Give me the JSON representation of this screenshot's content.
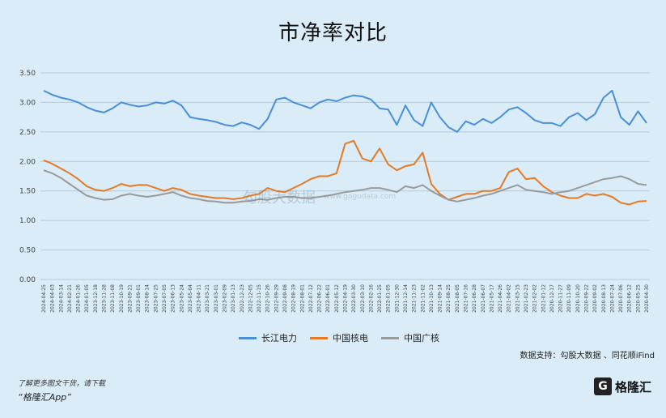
{
  "chart_data": {
    "type": "line",
    "title": "市净率对比",
    "xlabel": "",
    "ylabel": "",
    "ylim": [
      0,
      3.5
    ],
    "yticks": [
      "0.00",
      "0.50",
      "1.00",
      "1.50",
      "2.00",
      "2.50",
      "3.00",
      "3.50"
    ],
    "x": [
      "2024-04-25",
      "2024-04-03",
      "2024-03-14",
      "2024-02-21",
      "2024-01-26",
      "2024-01-05",
      "2023-12-18",
      "2023-11-28",
      "2023-11-08",
      "2023-10-19",
      "2023-09-21",
      "2023-09-01",
      "2023-08-14",
      "2023-07-25",
      "2023-07-05",
      "2023-06-13",
      "2023-05-24",
      "2023-05-04",
      "2023-04-11",
      "2023-03-21",
      "2023-03-01",
      "2023-02-09",
      "2023-01-13",
      "2022-12-23",
      "2022-12-05",
      "2022-11-15",
      "2022-10-26",
      "2022-09-29",
      "2022-09-08",
      "2022-08-19",
      "2022-08-01",
      "2022-07-12",
      "2022-06-22",
      "2022-06-01",
      "2022-05-12",
      "2022-04-19",
      "2022-03-30",
      "2022-03-10",
      "2022-02-16",
      "2022-01-25",
      "2022-01-05",
      "2021-12-30",
      "2021-12-14",
      "2021-11-23",
      "2021-11-02",
      "2021-10-13",
      "2021-09-14",
      "2021-08-25",
      "2021-08-05",
      "2021-07-16",
      "2021-06-28",
      "2021-06-07",
      "2021-05-17",
      "2021-04-26",
      "2021-04-02",
      "2021-03-15",
      "2021-02-23",
      "2021-02-02",
      "2021-01-12",
      "2020-12-17",
      "2020-11-27",
      "2020-11-09",
      "2020-10-20",
      "2020-09-22",
      "2020-09-02",
      "2020-08-13",
      "2020-07-24",
      "2020-07-06",
      "2020-06-12",
      "2020-05-25",
      "2020-04-30"
    ],
    "legend_position": "bottom",
    "grid": true,
    "series": [
      {
        "name": "长江电力",
        "color": "#4a8fd6",
        "values": [
          3.2,
          3.13,
          3.08,
          3.05,
          3.0,
          2.92,
          2.86,
          2.83,
          2.9,
          3.0,
          2.96,
          2.93,
          2.95,
          3.0,
          2.98,
          3.03,
          2.95,
          2.75,
          2.72,
          2.7,
          2.67,
          2.62,
          2.6,
          2.66,
          2.62,
          2.55,
          2.72,
          3.05,
          3.08,
          3.0,
          2.95,
          2.9,
          3.0,
          3.05,
          3.02,
          3.08,
          3.12,
          3.1,
          3.05,
          2.9,
          2.88,
          2.62,
          2.95,
          2.7,
          2.6,
          3.0,
          2.75,
          2.58,
          2.5,
          2.68,
          2.62,
          2.72,
          2.65,
          2.75,
          2.88,
          2.92,
          2.82,
          2.7,
          2.65,
          2.65,
          2.6,
          2.75,
          2.82,
          2.7,
          2.8,
          3.08,
          3.2,
          2.75,
          2.62,
          2.85,
          2.65
        ]
      },
      {
        "name": "中国核电",
        "color": "#e57a25",
        "values": [
          2.02,
          1.96,
          1.88,
          1.8,
          1.7,
          1.58,
          1.52,
          1.5,
          1.55,
          1.62,
          1.58,
          1.6,
          1.6,
          1.55,
          1.5,
          1.55,
          1.52,
          1.45,
          1.42,
          1.4,
          1.38,
          1.38,
          1.36,
          1.38,
          1.42,
          1.45,
          1.55,
          1.5,
          1.48,
          1.55,
          1.62,
          1.7,
          1.75,
          1.75,
          1.8,
          2.3,
          2.35,
          2.05,
          2.0,
          2.22,
          1.95,
          1.85,
          1.92,
          1.95,
          2.15,
          1.62,
          1.45,
          1.35,
          1.4,
          1.45,
          1.45,
          1.5,
          1.5,
          1.55,
          1.82,
          1.88,
          1.7,
          1.72,
          1.58,
          1.48,
          1.42,
          1.38,
          1.38,
          1.45,
          1.42,
          1.45,
          1.4,
          1.3,
          1.27,
          1.32,
          1.33
        ]
      },
      {
        "name": "中国广核",
        "color": "#9a9a9a",
        "values": [
          1.85,
          1.8,
          1.72,
          1.62,
          1.52,
          1.42,
          1.38,
          1.35,
          1.36,
          1.42,
          1.45,
          1.42,
          1.4,
          1.42,
          1.45,
          1.48,
          1.42,
          1.38,
          1.36,
          1.33,
          1.32,
          1.3,
          1.3,
          1.32,
          1.33,
          1.36,
          1.35,
          1.38,
          1.4,
          1.4,
          1.38,
          1.38,
          1.4,
          1.42,
          1.45,
          1.48,
          1.5,
          1.52,
          1.55,
          1.55,
          1.52,
          1.48,
          1.58,
          1.55,
          1.6,
          1.5,
          1.42,
          1.35,
          1.32,
          1.35,
          1.38,
          1.42,
          1.45,
          1.5,
          1.55,
          1.6,
          1.52,
          1.5,
          1.48,
          1.45,
          1.48,
          1.5,
          1.55,
          1.6,
          1.65,
          1.7,
          1.72,
          1.75,
          1.7,
          1.62,
          1.6
        ]
      }
    ],
    "annotations": [
      "数据支持：勾股大数据 、同花顺iFind"
    ]
  },
  "footer": {
    "note": "了解更多图文干货，请下载",
    "app": "“格隆汇App”",
    "brand_mark": "G",
    "brand_name": "格隆汇"
  },
  "watermark": {
    "text": "勾股大数据",
    "url": "www.gogudata.com"
  }
}
